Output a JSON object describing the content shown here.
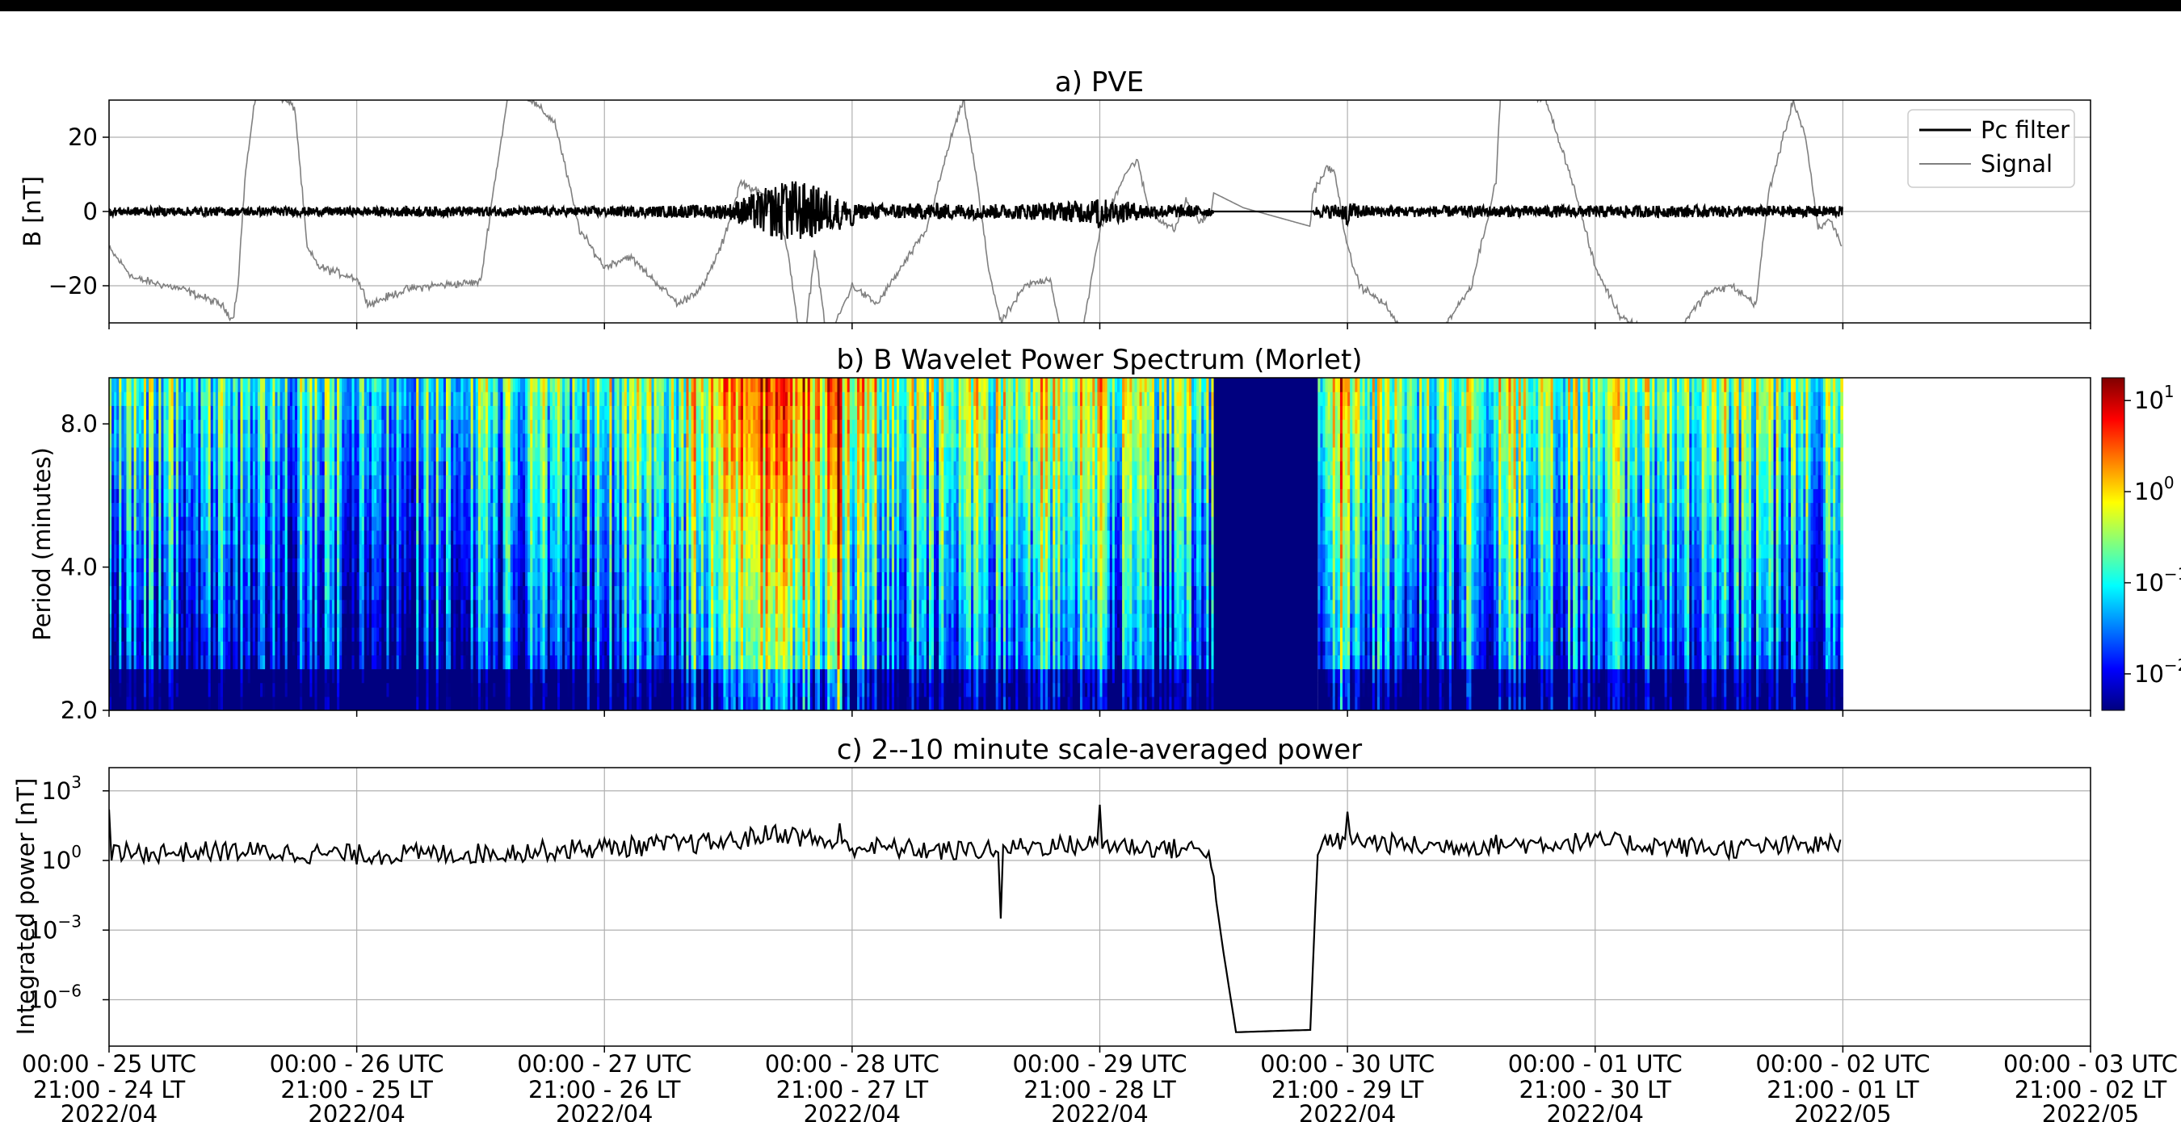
{
  "chart_data": [
    {
      "type": "line",
      "title": "a) PVE",
      "ylabel": "B [nT]",
      "ylim": [
        -30,
        30
      ],
      "yticks": [
        20,
        0,
        -20
      ],
      "ytick_labels": [
        "20",
        "0",
        "−20"
      ],
      "grid": true,
      "legend_position": "top-right",
      "x_range_days": [
        25,
        33
      ],
      "series": [
        {
          "name": "Pc filter",
          "color": "#000000",
          "noise_envelope": [
            [
              25.0,
              1.2
            ],
            [
              26.0,
              1.2
            ],
            [
              26.3,
              1.4
            ],
            [
              26.8,
              1.2
            ],
            [
              27.2,
              1.5
            ],
            [
              27.5,
              2.0
            ],
            [
              27.6,
              5.0
            ],
            [
              27.75,
              9.0
            ],
            [
              27.9,
              6.0
            ],
            [
              28.0,
              2.0
            ],
            [
              28.3,
              2.2
            ],
            [
              28.6,
              2.0
            ],
            [
              28.8,
              2.4
            ],
            [
              29.0,
              3.5
            ],
            [
              29.2,
              2.0
            ],
            [
              29.45,
              1.4
            ],
            [
              29.46,
              0
            ],
            [
              29.86,
              0
            ],
            [
              29.87,
              1.4
            ],
            [
              30.0,
              2.5
            ],
            [
              30.1,
              1.5
            ],
            [
              31.0,
              1.6
            ],
            [
              32.0,
              1.5
            ]
          ],
          "spikes": [
            [
              27.73,
              8
            ],
            [
              27.95,
              -5
            ],
            [
              28.0,
              -4
            ],
            [
              29.0,
              8
            ],
            [
              29.0,
              -5
            ],
            [
              30.0,
              5
            ],
            [
              30.0,
              -4
            ]
          ]
        },
        {
          "name": "Signal",
          "color": "#808080",
          "x": [
            25.0,
            25.1,
            25.3,
            25.45,
            25.5,
            25.52,
            25.55,
            25.6,
            25.75,
            25.8,
            25.85,
            26.0,
            26.05,
            26.2,
            26.3,
            26.5,
            26.55,
            26.62,
            26.8,
            26.9,
            27.0,
            27.1,
            27.3,
            27.4,
            27.48,
            27.55,
            27.6,
            27.7,
            27.75,
            27.8,
            27.85,
            27.9,
            28.0,
            28.1,
            28.3,
            28.4,
            28.45,
            28.5,
            28.55,
            28.6,
            28.7,
            28.8,
            28.85,
            28.9,
            28.95,
            29.0,
            29.1,
            29.15,
            29.2,
            29.3,
            29.35,
            29.4,
            29.45,
            29.46,
            29.58,
            29.85,
            29.86,
            29.92,
            29.95,
            30.0,
            30.05,
            30.15,
            30.3,
            30.5,
            30.6,
            30.62,
            30.8,
            30.9,
            31.0,
            31.1,
            31.3,
            31.45,
            31.55,
            31.65,
            31.7,
            31.8,
            31.85,
            31.9,
            31.95,
            32.0
          ],
          "y": [
            -10,
            -18,
            -21,
            -25,
            -29,
            -20,
            10,
            35,
            28,
            -10,
            -15,
            -18,
            -25,
            -21,
            -20,
            -19,
            5,
            35,
            24,
            -5,
            -15,
            -12,
            -25,
            -20,
            -8,
            8,
            6,
            2,
            -15,
            -40,
            -10,
            -35,
            -20,
            -25,
            -5,
            20,
            30,
            10,
            -15,
            -30,
            -20,
            -18,
            -35,
            -40,
            -25,
            -5,
            10,
            14,
            0,
            -5,
            3,
            -3,
            0,
            5,
            1,
            -4,
            5,
            12,
            10,
            -10,
            -20,
            -25,
            -40,
            -20,
            8,
            35,
            30,
            10,
            -15,
            -28,
            -35,
            -22,
            -20,
            -25,
            5,
            30,
            20,
            -5,
            -2,
            -10
          ]
        }
      ]
    },
    {
      "type": "heatmap",
      "title": "b) B Wavelet Power Spectrum (Morlet)",
      "ylabel": "Period (minutes)",
      "y_scale": "log",
      "ylim": [
        2.0,
        10.0
      ],
      "yticks": [
        2.0,
        4.0,
        8.0
      ],
      "ytick_labels": [
        "2.0",
        "4.0",
        "8.0"
      ],
      "x_range_days": [
        25,
        33
      ],
      "data_range_days": [
        25,
        32
      ],
      "gap_days": [
        29.46,
        29.88
      ],
      "colormap": "jet",
      "colorbar_scale": "log",
      "colorbar_ticks": [
        "10",
        "10",
        "10",
        "10"
      ],
      "colorbar_exponents": [
        "1",
        "0",
        "−1",
        "−2"
      ],
      "colorbar_tick_values": [
        10,
        1,
        0.1,
        0.01
      ],
      "intensity_profile": [
        [
          25.0,
          0.42
        ],
        [
          25.5,
          0.42
        ],
        [
          26.0,
          0.4
        ],
        [
          26.5,
          0.42
        ],
        [
          27.0,
          0.48
        ],
        [
          27.3,
          0.55
        ],
        [
          27.55,
          0.82
        ],
        [
          27.7,
          0.88
        ],
        [
          27.85,
          0.72
        ],
        [
          28.0,
          0.62
        ],
        [
          28.3,
          0.5
        ],
        [
          28.6,
          0.55
        ],
        [
          28.8,
          0.62
        ],
        [
          29.0,
          0.55
        ],
        [
          29.3,
          0.48
        ],
        [
          29.45,
          0.45
        ],
        [
          29.88,
          0.52
        ],
        [
          30.0,
          0.55
        ],
        [
          30.2,
          0.5
        ],
        [
          30.5,
          0.52
        ],
        [
          30.8,
          0.55
        ],
        [
          31.2,
          0.5
        ],
        [
          31.6,
          0.48
        ],
        [
          32.0,
          0.48
        ]
      ],
      "bright_columns": [
        27.95,
        29.0,
        29.98
      ]
    },
    {
      "type": "line",
      "title": "c) 2--10 minute scale-averaged power",
      "ylabel": "Integrated power [nT]",
      "y_scale": "log",
      "ylim": [
        1e-08,
        10000
      ],
      "yticks": [
        1000,
        1,
        0.001,
        1e-06
      ],
      "ytick_base": [
        "10",
        "10",
        "10",
        "10"
      ],
      "ytick_exponents": [
        "3",
        "0",
        "−3",
        "−6"
      ],
      "grid": true,
      "x_range_days": [
        25,
        33
      ],
      "series": [
        {
          "color": "#000000",
          "baseline_log10": [
            [
              25.0,
              0.3
            ],
            [
              25.5,
              0.4
            ],
            [
              26.0,
              0.25
            ],
            [
              26.5,
              0.3
            ],
            [
              27.0,
              0.55
            ],
            [
              27.5,
              0.8
            ],
            [
              27.7,
              1.2
            ],
            [
              27.85,
              0.9
            ],
            [
              28.0,
              0.6
            ],
            [
              28.4,
              0.4
            ],
            [
              28.7,
              0.6
            ],
            [
              29.0,
              0.7
            ],
            [
              29.3,
              0.5
            ],
            [
              29.44,
              0.5
            ],
            [
              29.5,
              -4.0
            ],
            [
              29.55,
              -7.4
            ],
            [
              29.85,
              -7.3
            ],
            [
              29.88,
              0.6
            ],
            [
              30.0,
              0.9
            ],
            [
              30.3,
              0.6
            ],
            [
              31.0,
              0.8
            ],
            [
              31.5,
              0.5
            ],
            [
              32.0,
              0.7
            ]
          ],
          "spikes_log10": [
            [
              25.0,
              2.2
            ],
            [
              27.95,
              1.6
            ],
            [
              28.6,
              -2.5
            ],
            [
              29.0,
              2.4
            ],
            [
              30.0,
              2.1
            ]
          ]
        }
      ]
    },
    {
      "type": "axis",
      "shared_x_ticks": [
        {
          "day": 25,
          "line1": "00:00 - 25 UTC",
          "line2": "21:00 - 24 LT",
          "line3": "2022/04"
        },
        {
          "day": 26,
          "line1": "00:00 - 26 UTC",
          "line2": "21:00 - 25 LT",
          "line3": "2022/04"
        },
        {
          "day": 27,
          "line1": "00:00 - 27 UTC",
          "line2": "21:00 - 26 LT",
          "line3": "2022/04"
        },
        {
          "day": 28,
          "line1": "00:00 - 28 UTC",
          "line2": "21:00 - 27 LT",
          "line3": "2022/04"
        },
        {
          "day": 29,
          "line1": "00:00 - 29 UTC",
          "line2": "21:00 - 28 LT",
          "line3": "2022/04"
        },
        {
          "day": 30,
          "line1": "00:00 - 30 UTC",
          "line2": "21:00 - 29 LT",
          "line3": "2022/04"
        },
        {
          "day": 31,
          "line1": "00:00 - 01 UTC",
          "line2": "21:00 - 30 LT",
          "line3": "2022/04"
        },
        {
          "day": 32,
          "line1": "00:00 - 02 UTC",
          "line2": "21:00 - 01 LT",
          "line3": "2022/05"
        },
        {
          "day": 33,
          "line1": "00:00 - 03 UTC",
          "line2": "21:00 - 02 LT",
          "line3": "2022/05"
        }
      ]
    }
  ]
}
